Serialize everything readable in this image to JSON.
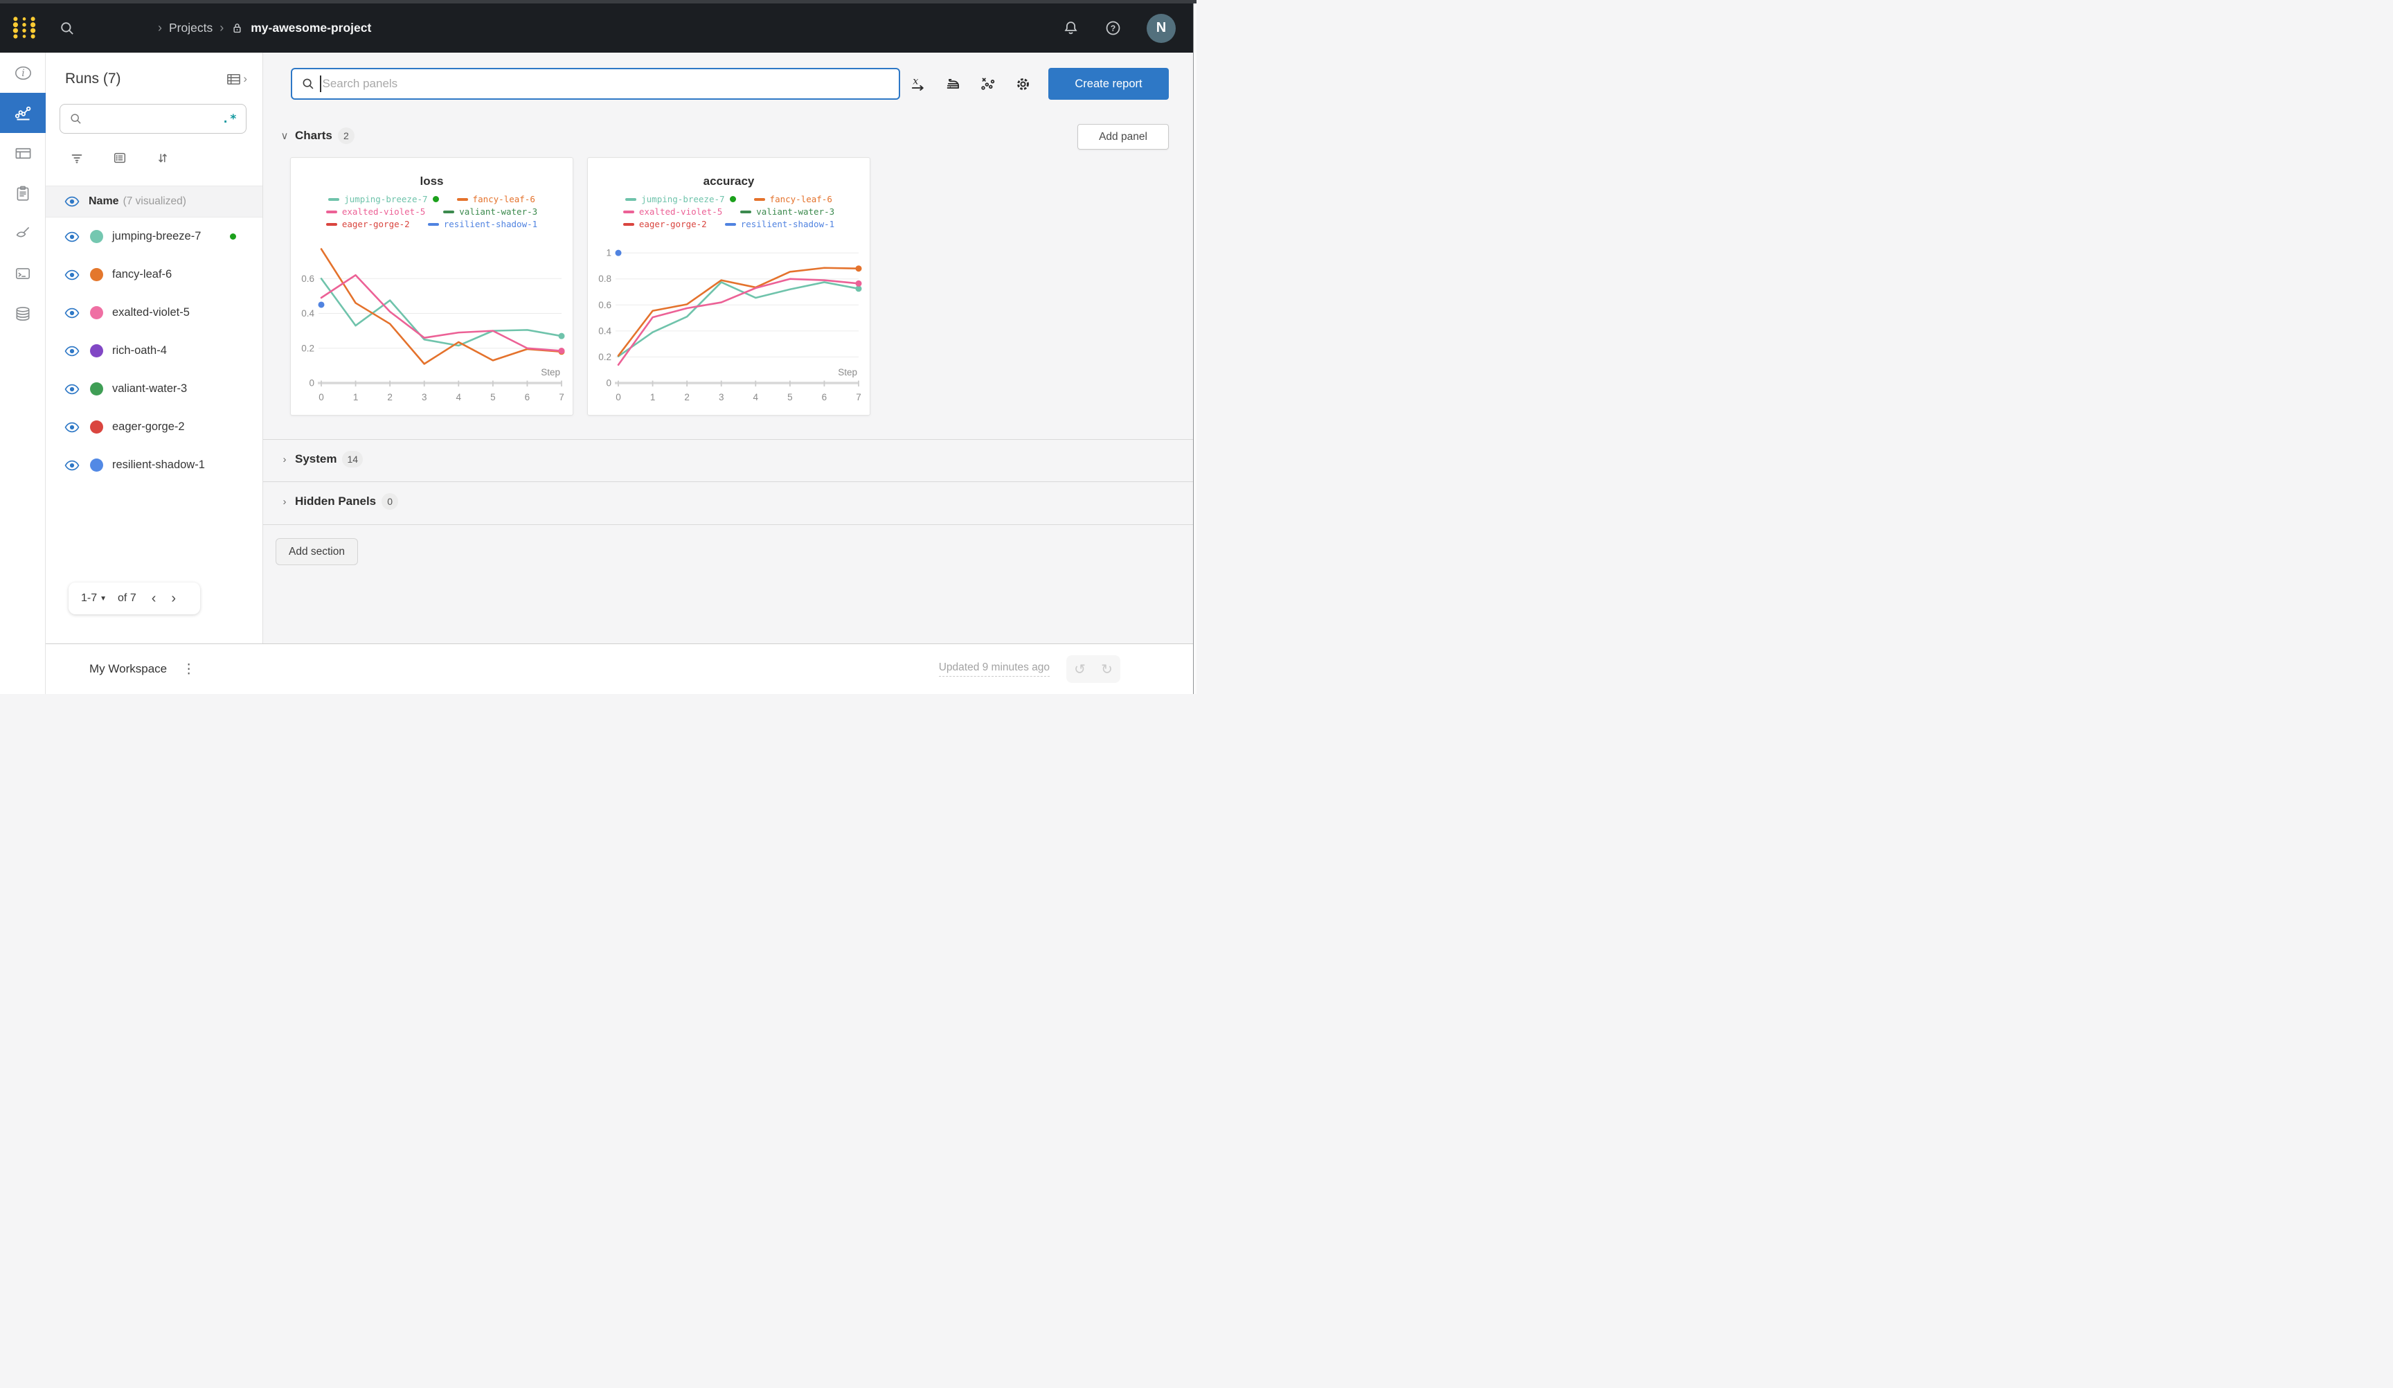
{
  "topbar": {
    "breadcrumb": {
      "projects": "Projects",
      "project": "my-awesome-project"
    },
    "avatar_initial": "N"
  },
  "rail": {
    "items": [
      {
        "icon": "info-icon",
        "name": "overview",
        "active": false
      },
      {
        "icon": "line-chart-icon",
        "name": "workspace",
        "active": true
      },
      {
        "icon": "table-icon",
        "name": "runs-table",
        "active": false
      },
      {
        "icon": "clipboard-icon",
        "name": "jobs",
        "active": false
      },
      {
        "icon": "broom-icon",
        "name": "sweeps",
        "active": false
      },
      {
        "icon": "terminal-icon",
        "name": "logs",
        "active": false
      },
      {
        "icon": "database-icon",
        "name": "artifacts",
        "active": false
      }
    ]
  },
  "sidebar": {
    "title": "Runs (7)",
    "search_placeholder": "",
    "regex_icon": ".*",
    "header": {
      "name": "Name",
      "visualized": "(7 visualized)"
    },
    "runs": [
      {
        "name": "jumping-breeze-7",
        "color": "#74c7b0",
        "running": true
      },
      {
        "name": "fancy-leaf-6",
        "color": "#e4772c",
        "running": false
      },
      {
        "name": "exalted-violet-5",
        "color": "#ef6fa3",
        "running": false
      },
      {
        "name": "rich-oath-4",
        "color": "#8147c5",
        "running": false
      },
      {
        "name": "valiant-water-3",
        "color": "#3f9e55",
        "running": false
      },
      {
        "name": "eager-gorge-2",
        "color": "#da453f",
        "running": false
      },
      {
        "name": "resilient-shadow-1",
        "color": "#5289e5",
        "running": false
      }
    ],
    "pagination": {
      "range": "1-7",
      "of": "of 7"
    }
  },
  "main": {
    "search": {
      "placeholder": "Search panels"
    },
    "create_report_label": "Create report",
    "add_panel_label": "Add panel",
    "add_section_label": "Add section",
    "sections": {
      "charts": {
        "label": "Charts",
        "count": "2"
      },
      "system": {
        "label": "System",
        "count": "14"
      },
      "hidden": {
        "label": "Hidden Panels",
        "count": "0"
      }
    }
  },
  "footer": {
    "workspace": "My Workspace",
    "updated": "Updated 9 minutes ago"
  },
  "accent_colors": {
    "blue": "#2e78c6",
    "running_green": "#1ba01b",
    "gold": "#ffcc33"
  },
  "chart_data": [
    {
      "type": "line",
      "title": "loss",
      "xlabel": "Step",
      "x": [
        0,
        1,
        2,
        3,
        4,
        5,
        6,
        7
      ],
      "xticks": [
        0,
        1,
        2,
        3,
        4,
        5,
        6,
        7
      ],
      "ylim": [
        0,
        0.8
      ],
      "yticks": [
        0,
        0.2,
        0.4,
        0.6
      ],
      "grid": "horizontal",
      "legend_position": "top",
      "series": [
        {
          "name": "jumping-breeze-7",
          "color": "#6fc3ab",
          "running_dot": true,
          "end_dot": true,
          "values": [
            0.6,
            0.33,
            0.475,
            0.25,
            0.215,
            0.3,
            0.305,
            0.27
          ]
        },
        {
          "name": "fancy-leaf-6",
          "color": "#e4722c",
          "end_dot": true,
          "values": [
            0.77,
            0.46,
            0.34,
            0.11,
            0.235,
            0.13,
            0.195,
            0.18
          ]
        },
        {
          "name": "exalted-violet-5",
          "color": "#ec6196",
          "end_dot": true,
          "values": [
            0.49,
            0.62,
            0.41,
            0.26,
            0.29,
            0.3,
            0.2,
            0.185
          ]
        },
        {
          "name": "valiant-water-3",
          "color": "#3c8a4e",
          "values": []
        },
        {
          "name": "eager-gorge-2",
          "color": "#d9453f",
          "values": []
        },
        {
          "name": "resilient-shadow-1",
          "color": "#5083e0",
          "values": [],
          "point": {
            "x": 0,
            "y": 0.45
          }
        }
      ]
    },
    {
      "type": "line",
      "title": "accuracy",
      "xlabel": "Step",
      "x": [
        0,
        1,
        2,
        3,
        4,
        5,
        6,
        7
      ],
      "xticks": [
        0,
        1,
        2,
        3,
        4,
        5,
        6,
        7
      ],
      "ylim": [
        0,
        1.07
      ],
      "yticks": [
        0,
        0.2,
        0.4,
        0.6,
        0.8,
        1
      ],
      "grid": "horizontal",
      "legend_position": "top",
      "series": [
        {
          "name": "jumping-breeze-7",
          "color": "#6fc3ab",
          "running_dot": true,
          "end_dot": true,
          "values": [
            0.205,
            0.39,
            0.51,
            0.775,
            0.655,
            0.72,
            0.775,
            0.725
          ]
        },
        {
          "name": "fancy-leaf-6",
          "color": "#e4722c",
          "end_dot": true,
          "values": [
            0.21,
            0.555,
            0.605,
            0.79,
            0.735,
            0.855,
            0.885,
            0.88
          ]
        },
        {
          "name": "exalted-violet-5",
          "color": "#ec6196",
          "end_dot": true,
          "values": [
            0.14,
            0.505,
            0.575,
            0.62,
            0.73,
            0.8,
            0.79,
            0.765
          ]
        },
        {
          "name": "valiant-water-3",
          "color": "#3c8a4e",
          "values": []
        },
        {
          "name": "eager-gorge-2",
          "color": "#d9453f",
          "values": []
        },
        {
          "name": "resilient-shadow-1",
          "color": "#5083e0",
          "values": [],
          "point": {
            "x": 0,
            "y": 1.0
          }
        }
      ]
    }
  ]
}
